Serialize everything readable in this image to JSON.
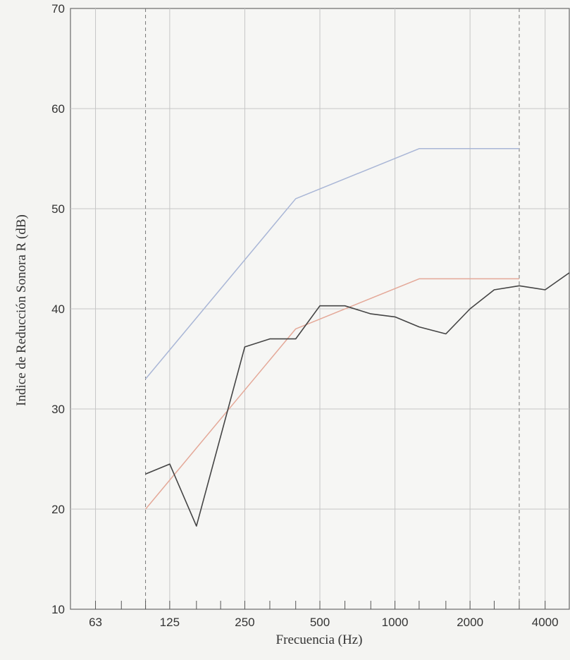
{
  "chart_data": {
    "type": "line",
    "title": "",
    "xlabel": "Frecuencia (Hz)",
    "ylabel": "Indice de Reducción Sonora R (dB)",
    "x_scale": "log2",
    "x_range": [
      50,
      5000
    ],
    "ylim": [
      10,
      70
    ],
    "yticks": [
      10,
      20,
      30,
      40,
      50,
      60,
      70
    ],
    "xticks": [
      63,
      125,
      250,
      500,
      1000,
      2000,
      4000
    ],
    "xtick_labels": [
      "63",
      "125",
      "250",
      "500",
      "1000",
      "2000",
      "4000"
    ],
    "minor_xticks": [
      50,
      80,
      100,
      160,
      200,
      315,
      400,
      630,
      800,
      1250,
      1600,
      2500,
      3150,
      5000
    ],
    "vertical_markers": [
      100,
      3150
    ],
    "grid": true,
    "series": [
      {
        "color": "#a9b6d6",
        "x": [
          100,
          400,
          1250,
          3150
        ],
        "y": [
          33,
          51,
          56,
          56
        ]
      },
      {
        "color": "#e4a898",
        "x": [
          100,
          400,
          1250,
          3150
        ],
        "y": [
          20,
          38,
          43,
          43
        ]
      },
      {
        "color": "#444444",
        "x": [
          100,
          125,
          160,
          250,
          315,
          400,
          500,
          630,
          800,
          1000,
          1250,
          1600,
          2000,
          2500,
          3150,
          4000,
          5000
        ],
        "y": [
          23.5,
          24.5,
          18.3,
          36.2,
          37,
          37,
          40.3,
          40.3,
          39.5,
          39.2,
          38.2,
          37.5,
          40,
          41.9,
          42.3,
          41.9,
          43.6
        ]
      }
    ]
  }
}
